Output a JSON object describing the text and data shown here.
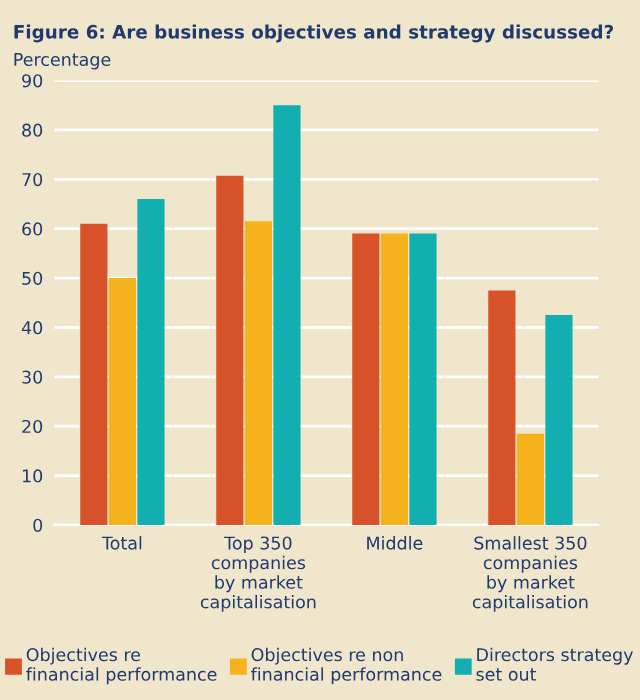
{
  "chart_data": {
    "type": "bar",
    "title": "Figure 6: Are business objectives and strategy discussed?",
    "ylabel": "Percentage",
    "categories": [
      "Total",
      "Top 350\ncompanies\nby market\ncapitalisation",
      "Middle",
      "Smallest 350\ncompanies\nby market\ncapitalisation"
    ],
    "series": [
      {
        "name": "Objectives re\nfinancial performance",
        "color": "#d9532a",
        "values": [
          61,
          70.7,
          59,
          47.5
        ]
      },
      {
        "name": "Objectives re non\nfinancial performance",
        "color": "#f5b21c",
        "values": [
          50,
          61.5,
          59,
          18.5
        ]
      },
      {
        "name": "Directors strategy\nset out",
        "color": "#12aeb0",
        "values": [
          66,
          85,
          59,
          42.5
        ]
      }
    ],
    "ylim": [
      0,
      90
    ],
    "yticks": [
      0,
      10,
      20,
      30,
      40,
      50,
      60,
      70,
      80,
      90
    ],
    "grid": "y",
    "legend": "bottom"
  }
}
